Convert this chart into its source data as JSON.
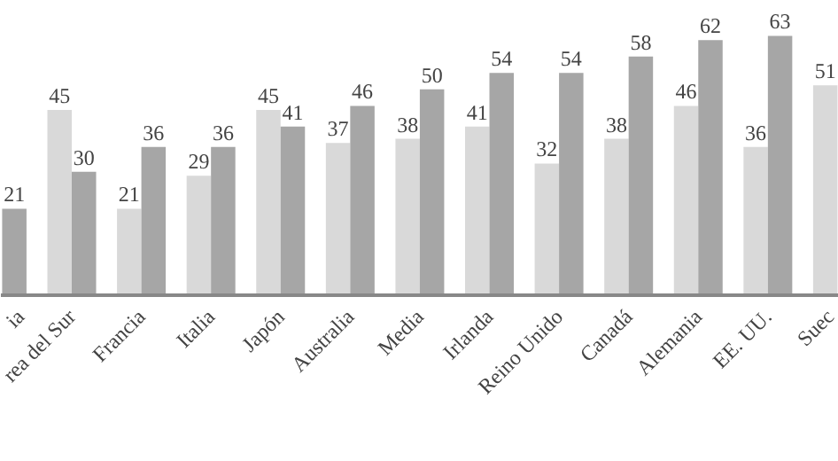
{
  "chart_data": {
    "type": "bar",
    "categories": [
      "ia",
      "rea del Sur",
      "Francia",
      "Italia",
      "Japón",
      "Australia",
      "Media",
      "Irlanda",
      "Reino Unido",
      "Canadá",
      "Alemania",
      "EE. UU.",
      "Suec"
    ],
    "series": [
      {
        "color": "#d9d9d9",
        "values": [
          null,
          45,
          21,
          29,
          45,
          37,
          38,
          41,
          32,
          38,
          46,
          36,
          51
        ]
      },
      {
        "color": "#a6a6a6",
        "values": [
          21,
          30,
          36,
          36,
          41,
          46,
          50,
          54,
          54,
          58,
          62,
          63,
          null
        ]
      }
    ],
    "data_labels": true
  }
}
